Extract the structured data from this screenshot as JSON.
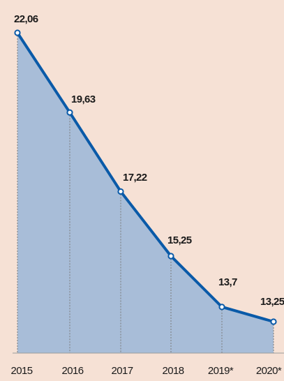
{
  "chart_data": {
    "type": "area",
    "title": "",
    "xlabel": "",
    "ylabel": "",
    "categories": [
      "2015",
      "2016",
      "2017",
      "2018",
      "2019*",
      "2020*"
    ],
    "series": [
      {
        "values": [
          22.06,
          19.63,
          17.22,
          15.25,
          13.7,
          13.25
        ],
        "labels": [
          "22,06",
          "19,63",
          "17,22",
          "15,25",
          "13,7",
          "13,25"
        ]
      }
    ],
    "ylim": [
      12.6,
      23
    ],
    "grid": "vertical dashed lines at each category",
    "legend": "none",
    "colors": {
      "background": "#f6e1d5",
      "area_fill": "#a8bdd8",
      "line": "#0a5aa8",
      "marker_fill": "#ffffff",
      "grid": "#7a7a7a",
      "baseline": "#9a9a9a"
    }
  }
}
